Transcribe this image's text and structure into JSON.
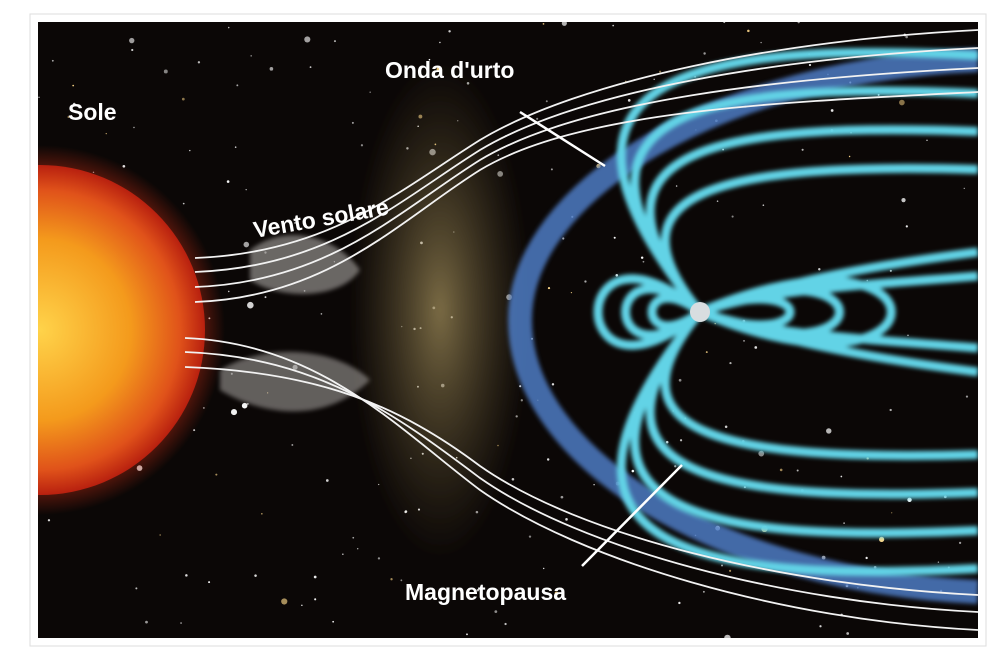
{
  "labels": {
    "sun": "Sole",
    "solar_wind": "Vento solare",
    "bow_shock": "Onda d'urto",
    "magnetopause": "Magnetopausa"
  }
}
